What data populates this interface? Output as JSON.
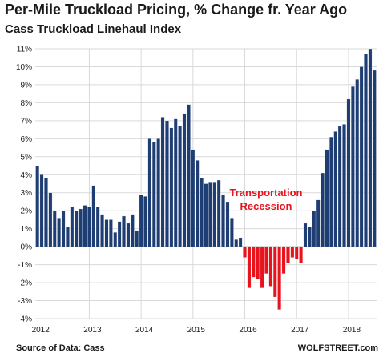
{
  "chart_data": {
    "type": "bar",
    "title": "Per-Mile Truckload Pricing, % Change fr. Year Ago",
    "subtitle": "Cass Truckload Linehaul Index",
    "xlabel": "",
    "ylabel": "",
    "ylim": [
      -4,
      11
    ],
    "y_ticks": [
      "-4%",
      "-3%",
      "-2%",
      "-1%",
      "0%",
      "1%",
      "2%",
      "3%",
      "4%",
      "5%",
      "6%",
      "7%",
      "8%",
      "9%",
      "10%",
      "11%"
    ],
    "x_ticks": [
      "2012",
      "2013",
      "2014",
      "2015",
      "2016",
      "2017",
      "2018"
    ],
    "grid": true,
    "start_month": "2012-01",
    "values": [
      4.5,
      4.0,
      3.8,
      3.0,
      2.0,
      1.6,
      2.0,
      1.1,
      2.2,
      2.0,
      2.1,
      2.3,
      2.2,
      3.4,
      2.2,
      1.8,
      1.5,
      1.5,
      0.8,
      1.4,
      1.7,
      1.3,
      1.8,
      0.9,
      2.9,
      2.8,
      6.0,
      5.8,
      6.0,
      7.2,
      7.0,
      6.6,
      7.1,
      6.7,
      7.4,
      7.9,
      5.4,
      4.8,
      3.8,
      3.5,
      3.6,
      3.6,
      3.7,
      2.9,
      2.5,
      1.6,
      0.4,
      0.5,
      -0.6,
      -2.3,
      -1.7,
      -1.8,
      -2.3,
      -1.5,
      -2.2,
      -2.8,
      -3.5,
      -1.5,
      -0.9,
      -0.6,
      -0.7,
      -0.9,
      1.3,
      1.1,
      2.0,
      2.6,
      4.1,
      5.4,
      6.1,
      6.4,
      6.7,
      6.8,
      8.2,
      8.9,
      9.3,
      10.0,
      10.7,
      11.0,
      9.8
    ],
    "colors": {
      "positive": "#1e3d73",
      "negative": "#e8131c",
      "grid": "#d9d9d9"
    },
    "annotation": {
      "line1": "Transportation",
      "line2": "Recession",
      "color": "#e8131c"
    }
  },
  "footer": {
    "source": "Source of Data: Cass",
    "credit": "WOLFSTREET.com"
  }
}
